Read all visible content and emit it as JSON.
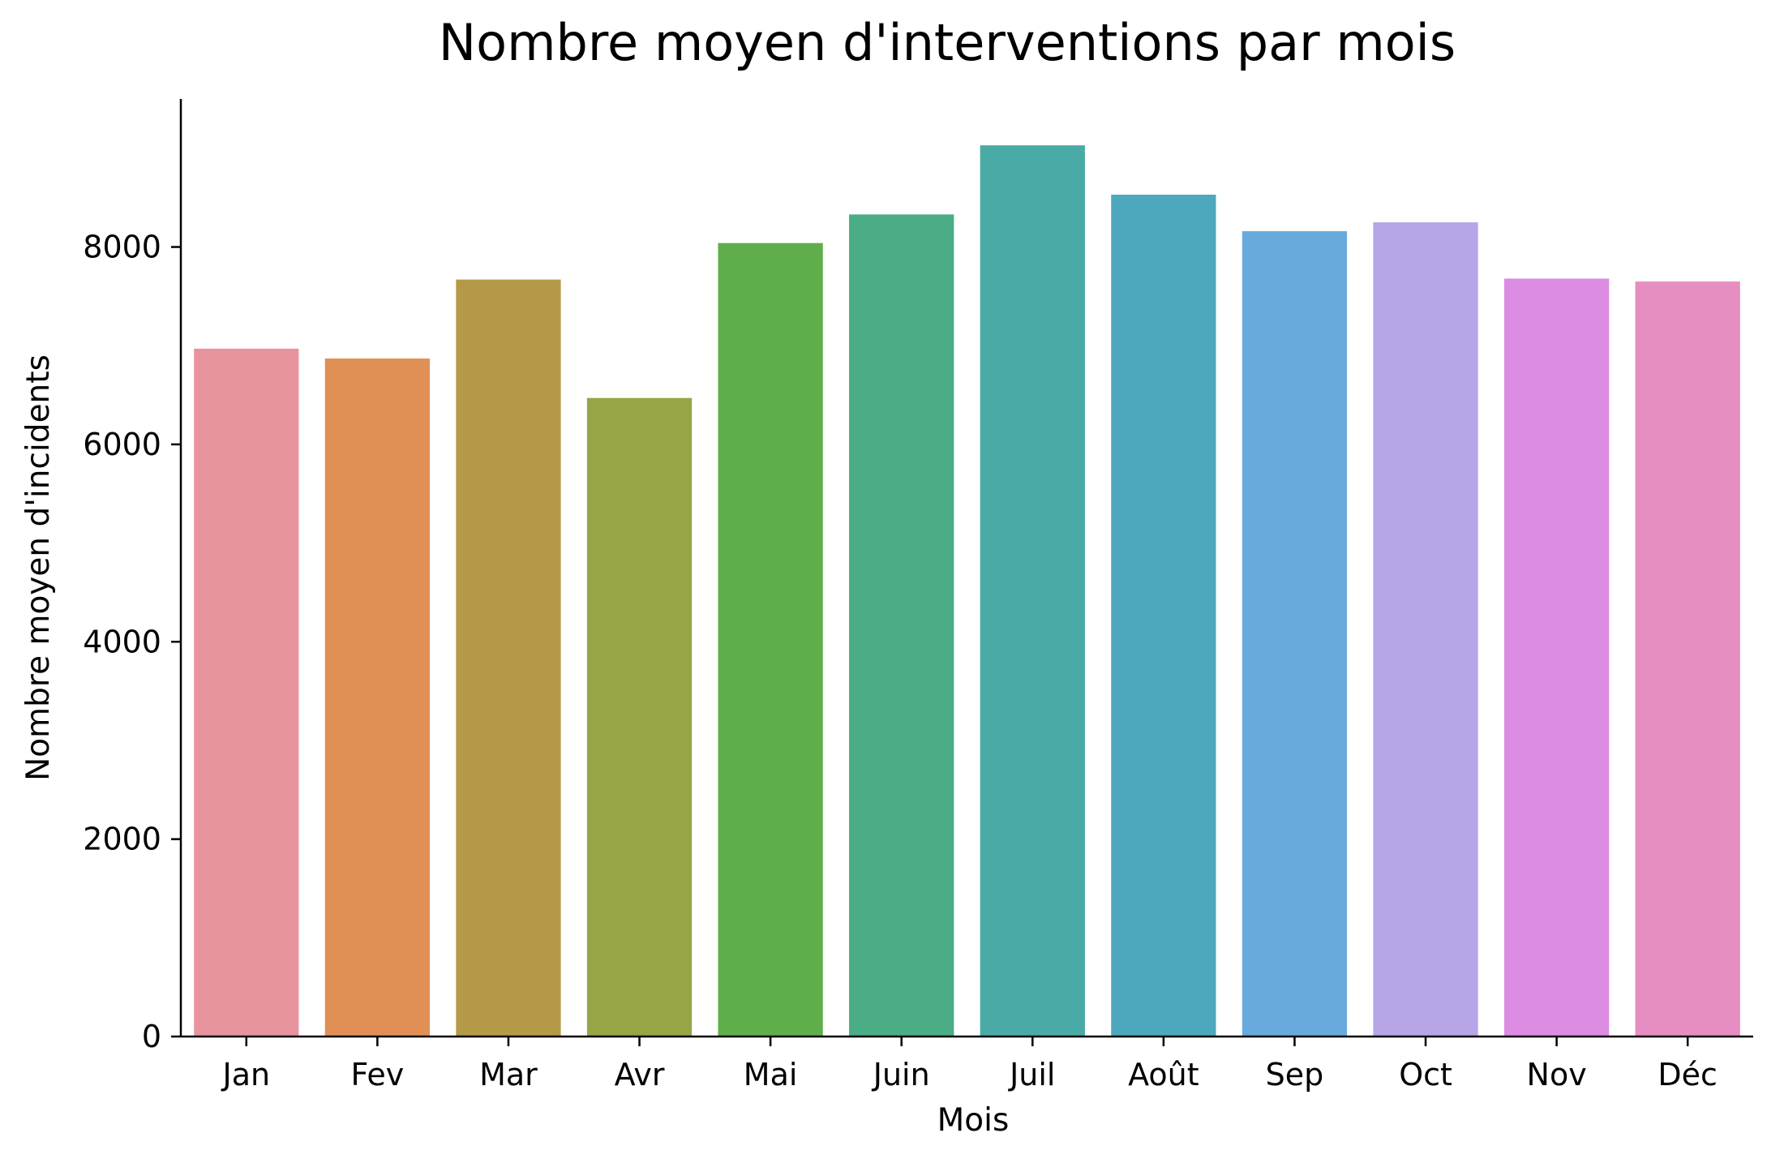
{
  "chart_data": {
    "type": "bar",
    "title": "Nombre moyen d'interventions par mois",
    "xlabel": "Mois",
    "ylabel": "Nombre moyen d'incidents",
    "categories": [
      "Jan",
      "Fev",
      "Mar",
      "Avr",
      "Mai",
      "Juin",
      "Juil",
      "Août",
      "Sep",
      "Oct",
      "Nov",
      "Déc"
    ],
    "values": [
      6970,
      6870,
      7670,
      6470,
      8040,
      8330,
      9030,
      8530,
      8160,
      8250,
      7680,
      7650
    ],
    "colors": [
      "#e8949f",
      "#e09055",
      "#b49a48",
      "#98a547",
      "#60ae4b",
      "#4aad86",
      "#4aaaa6",
      "#4ea8bd",
      "#69aadd",
      "#b6a6e8",
      "#dd8ce4",
      "#e68ec1"
    ],
    "yticks": [
      0,
      2000,
      4000,
      6000,
      8000
    ],
    "ylim": [
      0,
      9500
    ],
    "grid": false,
    "legend": "none"
  }
}
